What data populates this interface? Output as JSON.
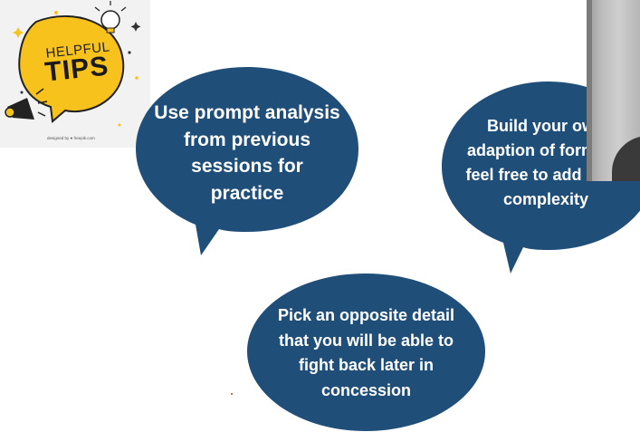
{
  "illustration": {
    "title_line1": "HELPFUL",
    "title_line2": "TIPS",
    "credit": "designed by ● freepik.com",
    "accent_color": "#f7c21b"
  },
  "bubble_color": "#1f4e79",
  "tips": [
    {
      "text": "Use prompt analysis from previous sessions for practice"
    },
    {
      "text": "Build your own adaption of formula; feel free to add more complexity"
    },
    {
      "text": "Pick an opposite detail that you will be able to fight back later in concession"
    }
  ]
}
